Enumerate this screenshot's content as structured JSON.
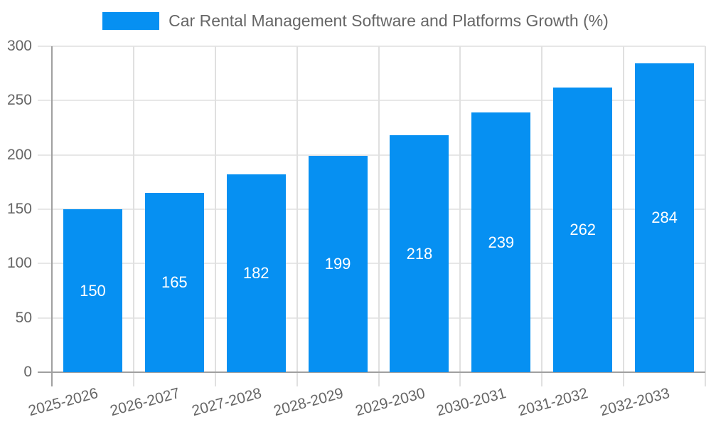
{
  "legend": {
    "label": "Car Rental Management Software and Platforms Growth (%)"
  },
  "chart_data": {
    "type": "bar",
    "title": "",
    "xlabel": "",
    "ylabel": "",
    "categories": [
      "2025-2026",
      "2026-2027",
      "2027-2028",
      "2028-2029",
      "2029-2030",
      "2030-2031",
      "2031-2032",
      "2032-2033"
    ],
    "series": [
      {
        "name": "Car Rental Management Software and Platforms Growth (%)",
        "values": [
          150,
          165,
          182,
          199,
          218,
          239,
          262,
          284
        ]
      }
    ],
    "values": [
      150,
      165,
      182,
      199,
      218,
      239,
      262,
      284
    ],
    "value_labels": "inside-center",
    "ylim": [
      0,
      300
    ],
    "yticks": [
      0,
      50,
      100,
      150,
      200,
      250,
      300
    ],
    "grid": true,
    "legend_position": "top-center",
    "bar_color": "#0690F2",
    "value_label_color": "#ffffff",
    "axis_text_color": "#666666",
    "gridline_color_h": "#e7e7e7",
    "gridline_color_v": "#e0e0e0",
    "axis_line_color": "#a0a0a0",
    "x_label_rotation_deg": -15
  }
}
